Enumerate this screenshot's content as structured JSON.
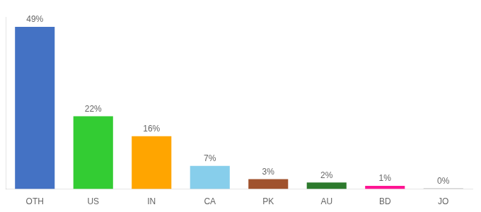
{
  "chart_data": {
    "type": "bar",
    "categories": [
      "OTH",
      "US",
      "IN",
      "CA",
      "PK",
      "AU",
      "BD",
      "JO"
    ],
    "values": [
      49,
      22,
      16,
      7,
      3,
      2,
      1,
      0.3
    ],
    "value_labels": [
      "49%",
      "22%",
      "16%",
      "7%",
      "3%",
      "2%",
      "1%",
      "0%"
    ],
    "colors": [
      "#4472C4",
      "#33CC33",
      "#FFA500",
      "#87CEEB",
      "#A0522D",
      "#2D7A2D",
      "#FF1493",
      "#cccccc"
    ],
    "ylim": [
      0,
      52
    ],
    "grid": false,
    "data_labels": true,
    "tick_labels": "x"
  }
}
